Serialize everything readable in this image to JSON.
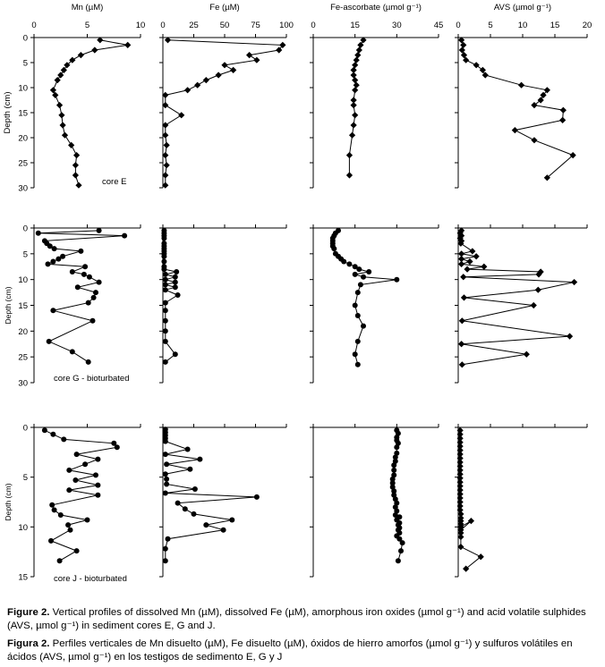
{
  "figure": {
    "panel_titles": [
      "Mn (µM)",
      "Fe (µM)",
      "Fe-ascorbate  (µmol g⁻¹)",
      "AVS (µmol g⁻¹)"
    ],
    "depth_label": "Depth (cm)",
    "depth_label_short": "Depth (cm)",
    "x_ticks": [
      [
        "0",
        "5",
        "10"
      ],
      [
        "0",
        "25",
        "50",
        "75",
        "100"
      ],
      [
        "0",
        "15",
        "30",
        "45"
      ],
      [
        "0",
        "5",
        "10",
        "15",
        "20"
      ]
    ],
    "core_labels": [
      "core E",
      "core G - bioturbated",
      "core J - bioturbated"
    ],
    "colors": {
      "marker": "#000000",
      "line": "#000000"
    }
  },
  "caption": {
    "en_label": "Figure 2.",
    "en_text": " Vertical profiles of dissolved Mn (µM), dissolved Fe (µM), amorphous iron oxides (µmol g⁻¹) and acid volatile sulphides (AVS, µmol g⁻¹) in sediment cores E, G and J.",
    "es_label": "Figura 2.",
    "es_text": "  Perfiles verticales de Mn disuelto (µM), Fe disuelto (µM), óxidos de hierro amorfos (µmol g⁻¹) y sulfuros volátiles en ácidos (AVS, µmol g⁻¹) en los testigos de sedimento E, G y J"
  },
  "chart_data": [
    {
      "type": "line",
      "core": "E",
      "variable": "Mn",
      "xlim": [
        0,
        10
      ],
      "ylim": [
        30,
        0
      ],
      "y_ticks": [
        0,
        5,
        10,
        15,
        20,
        25,
        30
      ],
      "marker": "diamond",
      "x": [
        6.2,
        8.8,
        5.7,
        4.4,
        3.6,
        3.1,
        2.8,
        2.5,
        2.2,
        1.8,
        2.0,
        2.4,
        2.6,
        2.7,
        2.9,
        3.5,
        4.0,
        3.9,
        3.9,
        4.2
      ],
      "y": [
        0.5,
        1.5,
        2.5,
        3.5,
        4.5,
        5.5,
        6.5,
        7.5,
        8.5,
        10.5,
        11.5,
        13.5,
        15.5,
        17.5,
        19.5,
        21.5,
        23.5,
        25.5,
        27.5,
        29.5
      ]
    },
    {
      "type": "line",
      "core": "E",
      "variable": "Fe",
      "xlim": [
        0,
        100
      ],
      "ylim": [
        30,
        0
      ],
      "y_ticks": [
        0,
        5,
        10,
        15,
        20,
        25,
        30
      ],
      "marker": "diamond",
      "x": [
        4,
        97,
        94,
        70,
        76,
        50,
        57,
        45,
        35,
        28,
        20,
        2,
        2,
        15,
        2,
        2,
        3,
        2,
        3,
        2,
        2
      ],
      "y": [
        0.5,
        1.5,
        2.5,
        3.5,
        4.5,
        5.5,
        6.5,
        7.5,
        8.5,
        9.5,
        10.5,
        11.5,
        13.5,
        15.5,
        17.5,
        19.5,
        21.5,
        23.5,
        25.5,
        27.5,
        29.5
      ]
    },
    {
      "type": "line",
      "core": "E",
      "variable": "Fe-ascorbate",
      "xlim": [
        0,
        45
      ],
      "ylim": [
        30,
        0
      ],
      "y_ticks": [
        0,
        5,
        10,
        15,
        20,
        25,
        30
      ],
      "marker": "diamond",
      "x": [
        18,
        17,
        16.5,
        16,
        15.5,
        15,
        14.5,
        14.5,
        15,
        15.5,
        15,
        14.5,
        14.5,
        15,
        14.5,
        14,
        13,
        13
      ],
      "y": [
        0.5,
        1.5,
        2.5,
        3.5,
        4.5,
        5.5,
        6.5,
        7.5,
        8.5,
        9.5,
        10.5,
        12.5,
        13.5,
        15.5,
        17.5,
        19.5,
        23.5,
        27.5
      ]
    },
    {
      "type": "line",
      "core": "E",
      "variable": "AVS",
      "xlim": [
        0,
        20
      ],
      "ylim": [
        30,
        0
      ],
      "y_ticks": [
        0,
        5,
        10,
        15,
        20,
        25,
        30
      ],
      "marker": "diamond",
      "x": [
        0.5,
        0.8,
        0.6,
        0.9,
        1.2,
        2.8,
        3.8,
        4.2,
        9.8,
        13.8,
        13.2,
        12.8,
        11.8,
        16.3,
        16.2,
        8.8,
        11.8,
        17.8,
        13.8
      ],
      "y": [
        0.5,
        1.5,
        2.5,
        3.5,
        4.5,
        5.5,
        6.5,
        7.5,
        9.5,
        10.5,
        11.5,
        12.5,
        13.5,
        14.5,
        16.5,
        18.5,
        20.5,
        23.5,
        28.0
      ]
    },
    {
      "type": "line",
      "core": "G",
      "variable": "Mn",
      "xlim": [
        0,
        10
      ],
      "ylim": [
        30,
        0
      ],
      "y_ticks": [
        0,
        5,
        10,
        15,
        20,
        25,
        30
      ],
      "marker": "circle",
      "x": [
        6.1,
        0.4,
        8.5,
        1.0,
        1.2,
        1.5,
        1.9,
        4.4,
        2.7,
        2.3,
        1.8,
        1.3,
        4.8,
        3.6,
        4.7,
        5.2,
        6.1,
        4.1,
        5.8,
        5.6,
        5.1,
        1.8,
        5.5,
        1.4,
        3.6,
        5.1
      ],
      "y": [
        0.5,
        1.0,
        1.5,
        2.5,
        3.0,
        3.5,
        4.0,
        4.5,
        5.5,
        6.0,
        6.5,
        7.0,
        7.5,
        8.5,
        9.0,
        9.5,
        10.5,
        11.5,
        12.5,
        13.5,
        14.5,
        16.0,
        18.0,
        22.0,
        24.0,
        26.0
      ]
    },
    {
      "type": "line",
      "core": "G",
      "variable": "Fe",
      "xlim": [
        0,
        100
      ],
      "ylim": [
        30,
        0
      ],
      "y_ticks": [
        0,
        5,
        10,
        15,
        20,
        25,
        30
      ],
      "marker": "circle",
      "x": [
        1,
        1,
        1,
        1,
        1,
        1,
        1,
        1,
        1,
        1,
        1,
        1,
        1,
        11,
        2,
        10,
        2,
        10,
        2,
        10,
        2,
        12,
        2,
        2,
        2,
        2,
        2,
        10,
        2
      ],
      "y": [
        0.5,
        1.0,
        1.5,
        2.0,
        3.0,
        3.5,
        4.0,
        4.5,
        5.0,
        5.5,
        6.5,
        7.5,
        8.0,
        8.5,
        9.0,
        9.5,
        10.0,
        10.5,
        11.0,
        11.5,
        12.0,
        13.0,
        14.5,
        16.0,
        18.0,
        20.0,
        22.0,
        24.5,
        26.0
      ]
    },
    {
      "type": "line",
      "core": "G",
      "variable": "Fe-ascorbate",
      "xlim": [
        0,
        45
      ],
      "ylim": [
        30,
        0
      ],
      "y_ticks": [
        0,
        5,
        10,
        15,
        20,
        25,
        30
      ],
      "marker": "circle",
      "x": [
        9,
        8,
        7.5,
        7,
        7,
        7,
        7,
        7.5,
        8,
        9,
        10,
        11,
        13,
        15,
        16.5,
        20,
        15,
        18,
        30,
        17,
        16,
        15,
        16,
        18,
        16,
        15,
        16
      ],
      "y": [
        0.5,
        1.0,
        1.5,
        2.0,
        2.5,
        3.0,
        3.5,
        4.0,
        5.0,
        5.5,
        6.0,
        6.5,
        7.0,
        7.5,
        8.0,
        8.5,
        9.0,
        9.5,
        10.0,
        11.0,
        12.5,
        15.0,
        17.0,
        19.0,
        22.0,
        24.5,
        26.5
      ]
    },
    {
      "type": "line",
      "core": "G",
      "variable": "AVS",
      "xlim": [
        0,
        20
      ],
      "ylim": [
        30,
        0
      ],
      "y_ticks": [
        0,
        5,
        10,
        15,
        20,
        25,
        30
      ],
      "marker": "diamond",
      "x": [
        0.5,
        0.3,
        0.5,
        0.3,
        0.5,
        0.4,
        2.2,
        0.5,
        2.8,
        0.5,
        1.8,
        0.5,
        4,
        1.4,
        12.8,
        12.5,
        0.8,
        18,
        12.4,
        0.9,
        11.7,
        0.6,
        17.3,
        0.5,
        10.6,
        0.6
      ],
      "y": [
        0.5,
        1.0,
        1.5,
        2.0,
        2.5,
        3.0,
        4.5,
        5.0,
        5.5,
        6.0,
        6.5,
        7.0,
        7.5,
        8.0,
        8.5,
        9.0,
        9.5,
        10.5,
        12.0,
        13.5,
        15.0,
        18.0,
        21.0,
        22.5,
        24.5,
        26.5
      ]
    },
    {
      "type": "line",
      "core": "J",
      "variable": "Mn",
      "xlim": [
        0,
        10
      ],
      "ylim": [
        15,
        0
      ],
      "y_ticks": [
        0,
        5,
        10,
        15
      ],
      "marker": "circle",
      "x": [
        1.0,
        1.8,
        2.8,
        7.5,
        7.8,
        4.0,
        6.0,
        4.8,
        3.3,
        5.8,
        3.9,
        6.0,
        3.3,
        6.0,
        1.7,
        1.9,
        2.5,
        5.0,
        3.2,
        3.4,
        1.6,
        4.0,
        2.4
      ],
      "y": [
        0.3,
        0.7,
        1.2,
        1.6,
        2.0,
        2.7,
        3.2,
        3.7,
        4.3,
        4.8,
        5.3,
        5.8,
        6.3,
        6.8,
        7.8,
        8.3,
        8.8,
        9.3,
        9.8,
        10.3,
        11.4,
        12.4,
        13.4
      ]
    },
    {
      "type": "line",
      "core": "J",
      "variable": "Fe",
      "xlim": [
        0,
        100
      ],
      "ylim": [
        15,
        0
      ],
      "y_ticks": [
        0,
        5,
        10,
        15
      ],
      "marker": "circle",
      "x": [
        2,
        2,
        2,
        2,
        2,
        20,
        2,
        30,
        3,
        22,
        2,
        3,
        3,
        26,
        2,
        76,
        12,
        18,
        25,
        56,
        35,
        49,
        4,
        2,
        2
      ],
      "y": [
        0.2,
        0.5,
        0.8,
        1.1,
        1.4,
        2.2,
        2.7,
        3.2,
        3.7,
        4.2,
        4.7,
        5.2,
        5.7,
        6.2,
        6.6,
        7.0,
        7.6,
        8.2,
        8.7,
        9.3,
        9.8,
        10.3,
        11.2,
        12.2,
        13.4
      ]
    },
    {
      "type": "line",
      "core": "J",
      "variable": "Fe-ascorbate",
      "xlim": [
        0,
        45
      ],
      "ylim": [
        15,
        0
      ],
      "y_ticks": [
        0,
        5,
        10,
        15
      ],
      "marker": "circle",
      "x": [
        30,
        30.5,
        30,
        30,
        30.5,
        30,
        30,
        29.5,
        29.5,
        29,
        29,
        29,
        28.5,
        28.5,
        28.5,
        29,
        29,
        29.5,
        30,
        29.5,
        30,
        29.5,
        31,
        30,
        31,
        30.5,
        31,
        30.5,
        31,
        30,
        31,
        32,
        31.5,
        30.5
      ],
      "y": [
        0.3,
        0.6,
        1.0,
        1.3,
        1.6,
        2.0,
        2.6,
        3.0,
        3.4,
        3.8,
        4.3,
        4.8,
        5.2,
        5.6,
        6.0,
        6.4,
        6.8,
        7.2,
        7.6,
        8.0,
        8.4,
        8.8,
        9.0,
        9.3,
        9.6,
        9.8,
        10.1,
        10.3,
        10.6,
        10.9,
        11.2,
        11.6,
        12.4,
        13.4
      ]
    },
    {
      "type": "line",
      "core": "J",
      "variable": "AVS",
      "xlim": [
        0,
        20
      ],
      "ylim": [
        15,
        0
      ],
      "y_ticks": [
        0,
        5,
        10,
        15
      ],
      "marker": "diamond",
      "x": [
        0.3,
        0.3,
        0.3,
        0.3,
        0.3,
        0.3,
        0.3,
        0.3,
        0.3,
        0.3,
        0.3,
        0.3,
        0.3,
        0.3,
        0.3,
        0.3,
        0.3,
        0.3,
        0.3,
        0.3,
        0.3,
        0.4,
        0.4,
        0.4,
        0.4,
        0.4,
        2.0,
        0.4,
        0.4,
        0.4,
        0.4,
        3.5,
        1.2
      ],
      "y": [
        0.3,
        0.7,
        1.1,
        1.5,
        1.9,
        2.3,
        2.7,
        3.1,
        3.5,
        3.9,
        4.3,
        4.7,
        5.1,
        5.5,
        5.9,
        6.3,
        6.7,
        7.1,
        7.5,
        7.9,
        8.3,
        8.7,
        9.1,
        9.4,
        9.7,
        10.0,
        9.4,
        10.3,
        10.6,
        11.0,
        12.0,
        13.0,
        14.2
      ]
    }
  ]
}
